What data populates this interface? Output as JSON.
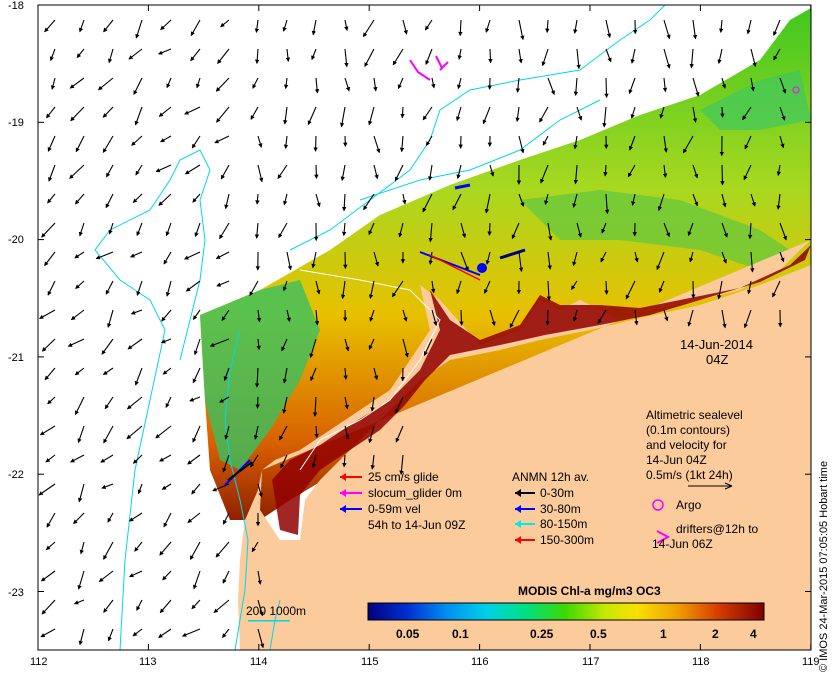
{
  "map": {
    "date": "14-Jun-2014",
    "time": "04Z",
    "credit": "© IMOS 24-Mar-2015 07:05:05 Hobart time",
    "lon_ticks": [
      "112",
      "113",
      "114",
      "115",
      "116",
      "117",
      "118",
      "119"
    ],
    "lat_ticks": [
      "-18",
      "-19",
      "-20",
      "-21",
      "-22",
      "-23"
    ],
    "extent": {
      "lon": [
        112,
        119
      ],
      "lat": [
        -23.5,
        -18
      ]
    },
    "colors": {
      "land": "#fccb9c",
      "contour": "#00d8e8",
      "arrows": "#000000"
    }
  },
  "altimetry": {
    "lines": [
      "Altimetric sealevel",
      "(0.1m contours)",
      "and velocity for",
      "14-Jun 04Z",
      "0.5m/s (1kt 24h)"
    ]
  },
  "glider_legend": [
    {
      "label": "25 cm/s glide",
      "color": "#ff0000"
    },
    {
      "label": "slocum_glider 0m",
      "color": "#ff00ff"
    },
    {
      "label": "0-59m vel",
      "color": "#0000ff"
    },
    {
      "label": "54h to 14-Jun 09Z",
      "color": ""
    }
  ],
  "anmn_legend": {
    "title": "ANMN 12h av.",
    "items": [
      {
        "label": "0-30m",
        "color": "#000000"
      },
      {
        "label": "30-80m",
        "color": "#0000ff"
      },
      {
        "label": "80-150m",
        "color": "#00e8f0"
      },
      {
        "label": "150-300m",
        "color": "#ff0000"
      }
    ]
  },
  "argo": {
    "label": "Argo",
    "color": "#ff00ff"
  },
  "drifters": {
    "lines": [
      "drifters@12h to",
      "14-Jun 06Z"
    ],
    "color": "#ff00ff"
  },
  "bathy_label": "200  1000m",
  "colorbar": {
    "title": "MODIS Chl-a mg/m3 OC3",
    "ticks": [
      "0.05",
      "0.1",
      "0.25",
      "0.5",
      "1",
      "2",
      "4"
    ],
    "scale": "log",
    "range": [
      0.03,
      6
    ],
    "colors": [
      "#000080",
      "#0020c0",
      "#0070e8",
      "#00b8f0",
      "#00e0d0",
      "#00e080",
      "#30d000",
      "#a8e000",
      "#f0f000",
      "#f8c000",
      "#f08000",
      "#e04000",
      "#c01000",
      "#800000"
    ]
  }
}
